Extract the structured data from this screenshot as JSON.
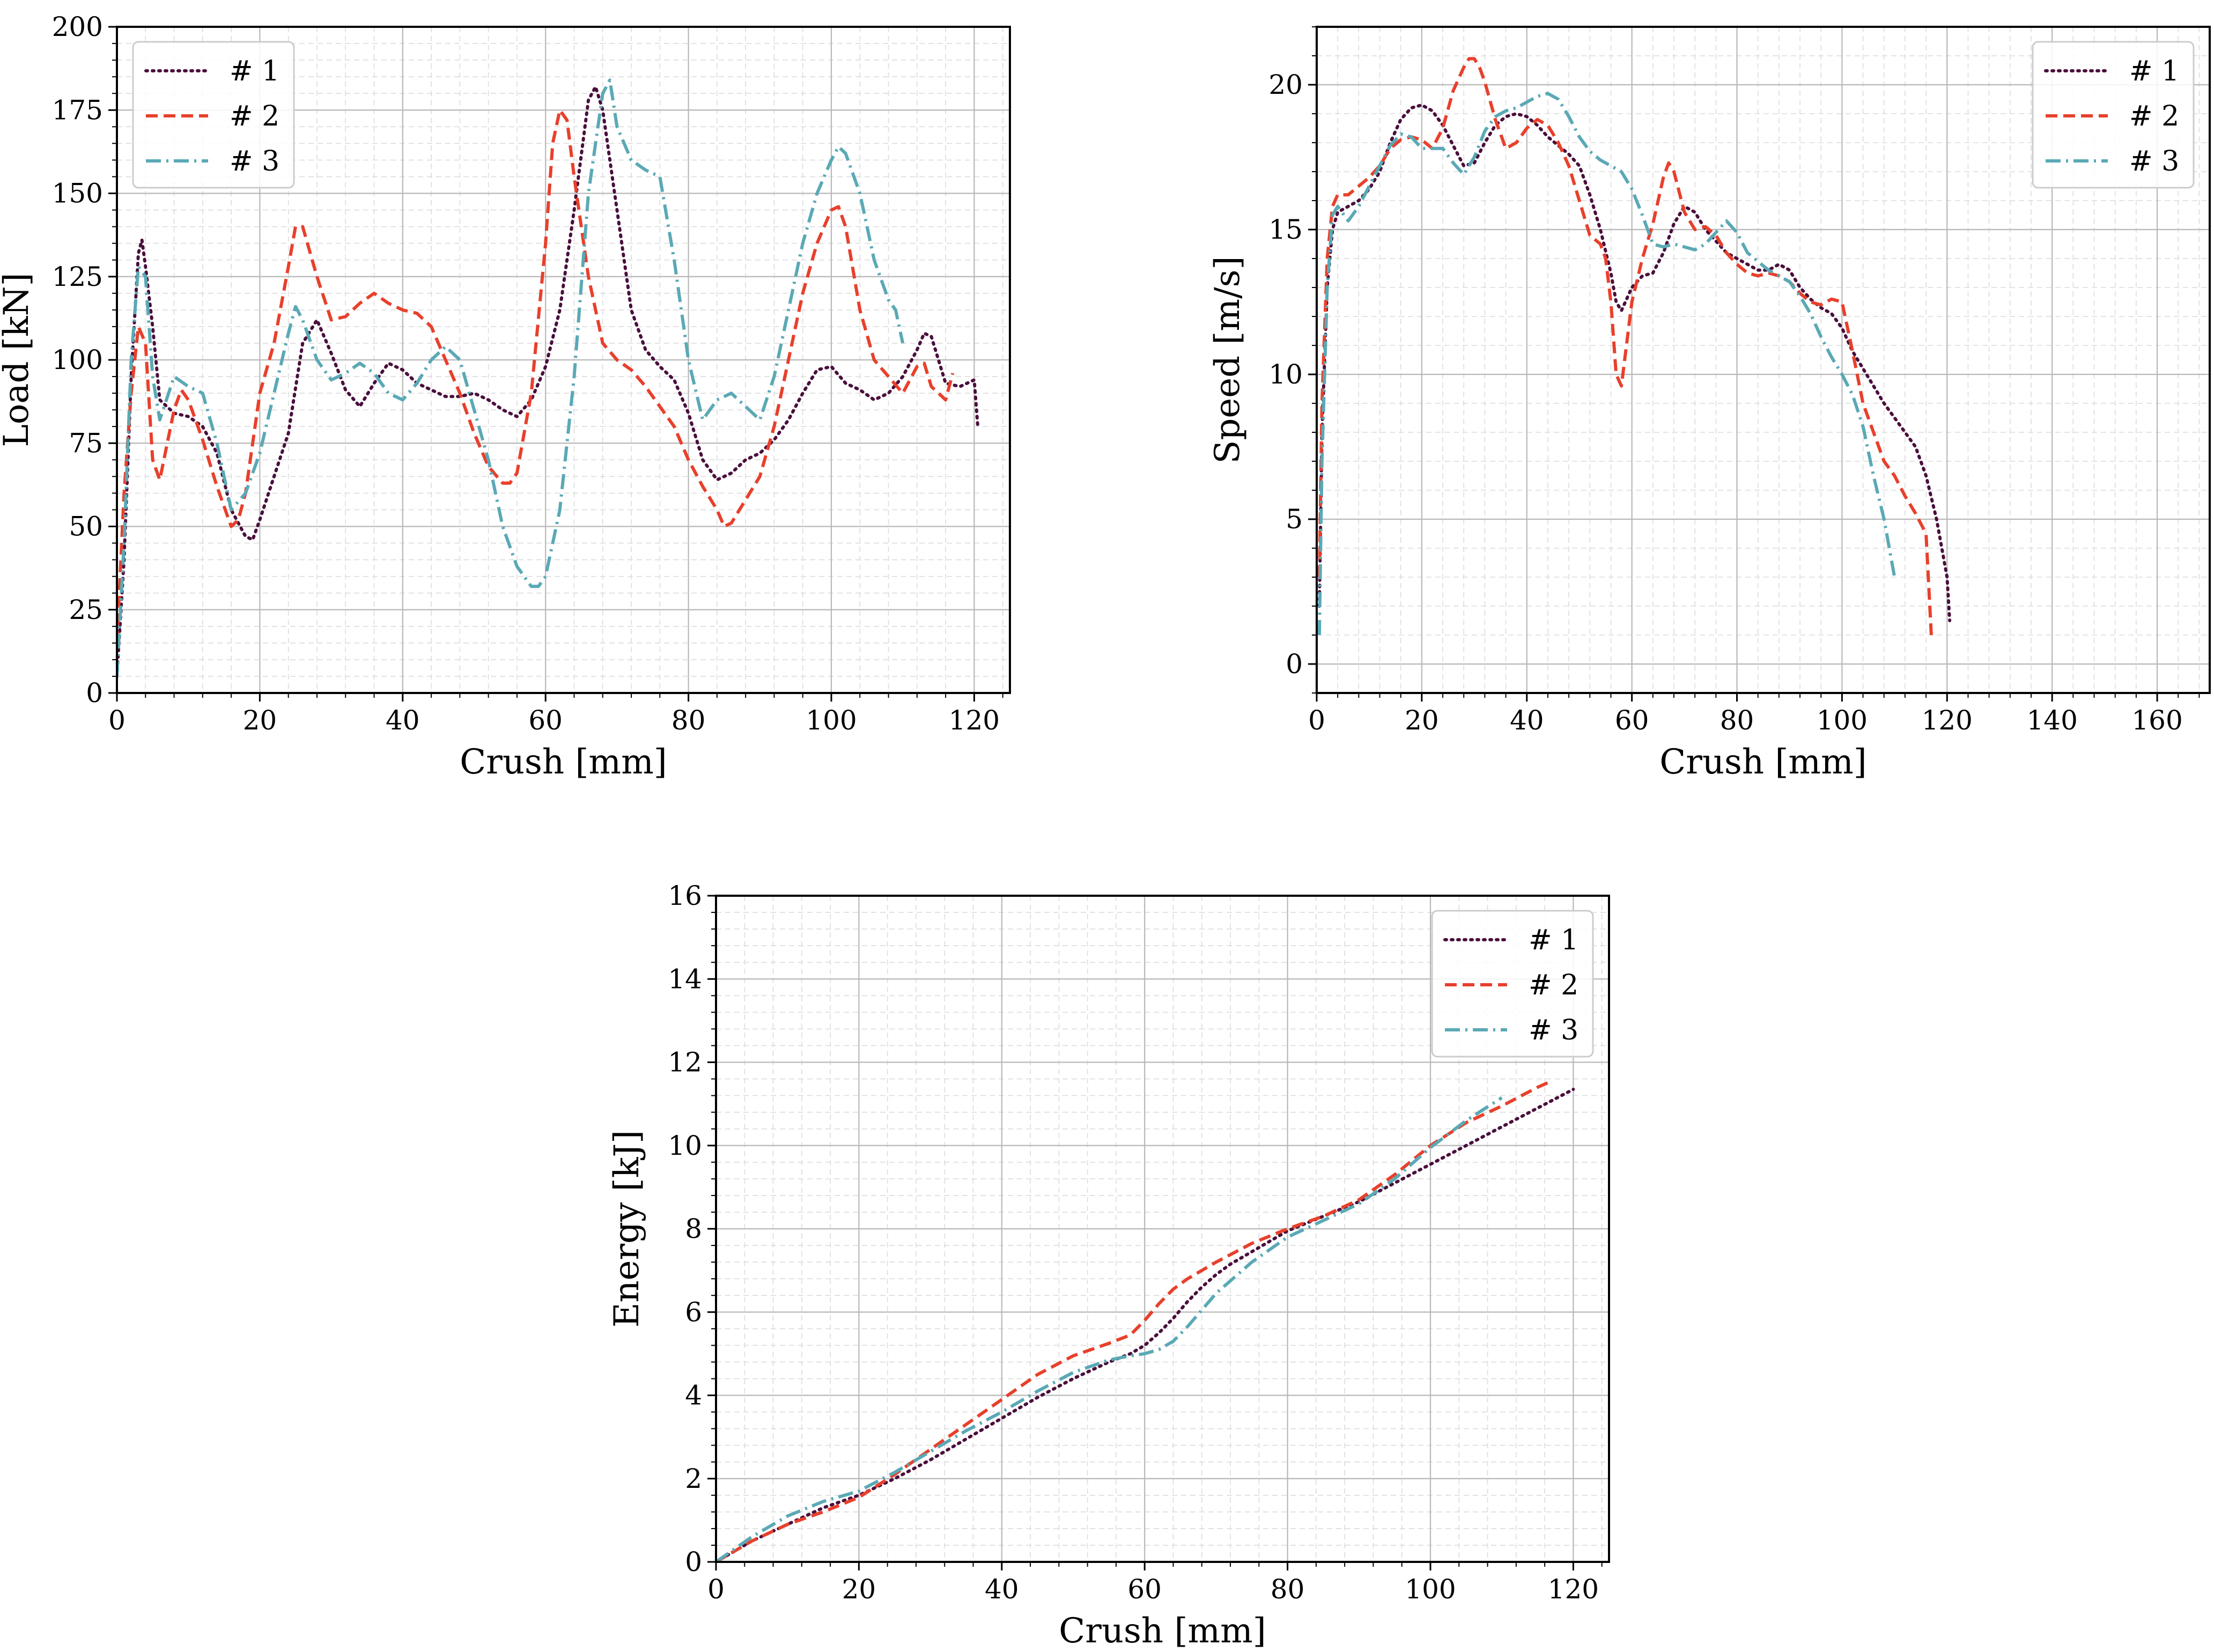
{
  "colors": {
    "series_1": "#4a0f3c",
    "series_2": "#e8402c",
    "series_3": "#5aa9b5"
  },
  "chart_data": [
    {
      "id": "load",
      "type": "line",
      "title": "",
      "xlabel": "Crush [mm]",
      "ylabel": "Load [kN]",
      "xlim": [
        0,
        125
      ],
      "ylim": [
        0,
        200
      ],
      "xticks": [
        0,
        20,
        40,
        60,
        80,
        100,
        120
      ],
      "yticks": [
        0,
        25,
        50,
        75,
        100,
        125,
        150,
        175,
        200
      ],
      "grid": true,
      "legend_position": "top-left",
      "series": [
        {
          "name": "# 1",
          "style": "dotted",
          "x": [
            0,
            1,
            2,
            3,
            3.5,
            4,
            5,
            6,
            8,
            10,
            12,
            14,
            16,
            18,
            19,
            20,
            22,
            24,
            26,
            28,
            30,
            32,
            34,
            36,
            38,
            40,
            42,
            44,
            46,
            48,
            50,
            52,
            54,
            56,
            58,
            60,
            62,
            64,
            66,
            67,
            68,
            70,
            72,
            74,
            76,
            78,
            80,
            82,
            84,
            86,
            88,
            90,
            92,
            94,
            96,
            98,
            100,
            102,
            104,
            106,
            108,
            110,
            112,
            113,
            114,
            115,
            116,
            118,
            120,
            120.5
          ],
          "y": [
            5,
            40,
            95,
            132,
            136,
            128,
            110,
            88,
            84,
            83,
            80,
            72,
            55,
            47,
            46,
            52,
            65,
            78,
            105,
            112,
            102,
            91,
            86,
            93,
            99,
            97,
            93,
            91,
            89,
            89,
            90,
            88,
            85,
            83,
            88,
            98,
            115,
            145,
            178,
            182,
            175,
            145,
            115,
            103,
            98,
            94,
            84,
            70,
            64,
            66,
            70,
            72,
            76,
            82,
            90,
            97,
            98,
            93,
            91,
            88,
            90,
            95,
            103,
            108,
            107,
            100,
            93,
            92,
            94,
            80
          ]
        },
        {
          "name": "# 2",
          "style": "dashed",
          "x": [
            0,
            1,
            2,
            3,
            4,
            5,
            6,
            8,
            9,
            10,
            12,
            14,
            16,
            17,
            18,
            20,
            22,
            24,
            25,
            26,
            28,
            30,
            32,
            34,
            36,
            38,
            40,
            42,
            44,
            46,
            48,
            50,
            52,
            54,
            55,
            56,
            58,
            60,
            61,
            62,
            63,
            64,
            66,
            68,
            70,
            72,
            74,
            76,
            78,
            80,
            82,
            84,
            85,
            86,
            88,
            90,
            92,
            94,
            96,
            98,
            100,
            101,
            102,
            104,
            106,
            108,
            110,
            112,
            113,
            114,
            116,
            117
          ],
          "y": [
            15,
            60,
            90,
            110,
            105,
            70,
            64,
            85,
            91,
            88,
            76,
            62,
            50,
            52,
            60,
            90,
            105,
            128,
            140,
            140,
            125,
            112,
            113,
            117,
            120,
            117,
            115,
            114,
            110,
            100,
            90,
            78,
            68,
            63,
            63,
            66,
            90,
            135,
            165,
            175,
            172,
            155,
            125,
            105,
            100,
            97,
            92,
            86,
            80,
            70,
            62,
            55,
            50,
            51,
            58,
            65,
            80,
            100,
            120,
            135,
            145,
            146,
            140,
            115,
            100,
            95,
            90,
            98,
            99,
            92,
            88,
            96
          ]
        },
        {
          "name": "# 3",
          "style": "dash-dot",
          "x": [
            0,
            1,
            2,
            3,
            4,
            5,
            6,
            8,
            10,
            12,
            14,
            16,
            18,
            20,
            22,
            24,
            25,
            26,
            28,
            30,
            32,
            34,
            36,
            38,
            40,
            42,
            44,
            46,
            48,
            50,
            52,
            54,
            56,
            58,
            59,
            60,
            62,
            64,
            66,
            68,
            69,
            70,
            72,
            74,
            76,
            78,
            80,
            82,
            84,
            86,
            88,
            90,
            92,
            94,
            96,
            98,
            100,
            101,
            102,
            104,
            106,
            108,
            109,
            110
          ],
          "y": [
            5,
            45,
            100,
            128,
            125,
            95,
            82,
            95,
            92,
            90,
            75,
            55,
            60,
            72,
            90,
            108,
            116,
            112,
            100,
            94,
            96,
            99,
            96,
            90,
            88,
            93,
            100,
            104,
            100,
            85,
            70,
            50,
            38,
            32,
            32,
            35,
            55,
            95,
            150,
            180,
            184,
            170,
            160,
            157,
            155,
            130,
            100,
            82,
            88,
            90,
            86,
            82,
            95,
            115,
            135,
            150,
            160,
            164,
            162,
            150,
            130,
            118,
            115,
            105
          ]
        }
      ]
    },
    {
      "id": "speed",
      "type": "line",
      "title": "",
      "xlabel": "Crush [mm]",
      "ylabel": "Speed [m/s]",
      "xlim": [
        0,
        170
      ],
      "ylim": [
        -1,
        22
      ],
      "xticks": [
        0,
        20,
        40,
        60,
        80,
        100,
        120,
        140,
        160
      ],
      "yticks": [
        0,
        5,
        10,
        15,
        20
      ],
      "grid": true,
      "legend_position": "top-right",
      "series": [
        {
          "name": "# 1",
          "style": "dotted",
          "x": [
            0.5,
            1,
            2,
            3,
            4,
            6,
            8,
            10,
            12,
            14,
            16,
            18,
            20,
            22,
            24,
            26,
            28,
            30,
            32,
            34,
            36,
            38,
            40,
            42,
            44,
            46,
            48,
            50,
            52,
            54,
            56,
            57,
            58,
            60,
            62,
            64,
            66,
            68,
            70,
            72,
            74,
            76,
            78,
            80,
            82,
            84,
            86,
            88,
            90,
            92,
            94,
            96,
            98,
            100,
            102,
            104,
            106,
            108,
            110,
            112,
            114,
            116,
            118,
            120,
            120.5
          ],
          "y": [
            2,
            8,
            13,
            15,
            15.6,
            15.8,
            16,
            16.4,
            17,
            18,
            18.8,
            19.2,
            19.3,
            19.1,
            18.6,
            17.9,
            17.2,
            17.3,
            18,
            18.6,
            18.9,
            19,
            18.9,
            18.6,
            18.2,
            17.9,
            17.6,
            17.2,
            16.2,
            15,
            13.5,
            12.5,
            12.2,
            13,
            13.4,
            13.5,
            14.2,
            15.2,
            15.8,
            15.6,
            15,
            14.6,
            14.2,
            14,
            13.8,
            13.6,
            13.6,
            13.8,
            13.6,
            13,
            12.6,
            12.3,
            12.1,
            11.6,
            10.8,
            10.2,
            9.6,
            9,
            8.5,
            8,
            7.5,
            6.5,
            5,
            3,
            1.5
          ]
        },
        {
          "name": "# 2",
          "style": "dashed",
          "x": [
            0.5,
            1,
            2,
            3,
            4,
            6,
            8,
            10,
            12,
            14,
            16,
            18,
            20,
            22,
            24,
            26,
            28,
            29,
            30,
            31,
            32,
            34,
            36,
            38,
            40,
            42,
            44,
            46,
            48,
            50,
            52,
            54,
            55,
            56,
            57,
            58,
            60,
            62,
            64,
            66,
            67,
            68,
            70,
            72,
            74,
            76,
            78,
            80,
            82,
            84,
            86,
            88,
            90,
            92,
            94,
            96,
            98,
            100,
            102,
            104,
            106,
            108,
            110,
            112,
            114,
            116,
            117
          ],
          "y": [
            3,
            9,
            14,
            15.8,
            16.2,
            16.2,
            16.5,
            16.8,
            17.2,
            17.8,
            18.1,
            18.2,
            18.1,
            17.8,
            18.5,
            19.8,
            20.6,
            20.9,
            20.9,
            20.6,
            20.1,
            18.8,
            17.8,
            18,
            18.5,
            18.8,
            18.6,
            18,
            17.2,
            16,
            14.8,
            14.5,
            14,
            12.5,
            10,
            9.6,
            12.5,
            14,
            15.2,
            16.8,
            17.3,
            17,
            15.6,
            15,
            15.1,
            14.8,
            14.2,
            13.8,
            13.5,
            13.4,
            13.5,
            13.4,
            13.2,
            12.8,
            12.5,
            12.4,
            12.6,
            12.5,
            10.8,
            9,
            8,
            7,
            6.5,
            5.8,
            5.2,
            4.5,
            1
          ]
        },
        {
          "name": "# 3",
          "style": "dash-dot",
          "x": [
            0.5,
            1,
            2,
            3,
            4,
            6,
            8,
            10,
            12,
            14,
            16,
            18,
            20,
            22,
            24,
            26,
            28,
            30,
            32,
            34,
            36,
            38,
            40,
            42,
            44,
            46,
            48,
            50,
            52,
            54,
            56,
            58,
            60,
            62,
            64,
            66,
            68,
            70,
            72,
            74,
            76,
            78,
            80,
            82,
            84,
            86,
            88,
            90,
            92,
            94,
            96,
            98,
            100,
            102,
            104,
            106,
            108,
            110
          ],
          "y": [
            1,
            7,
            13,
            15.5,
            15.8,
            15.3,
            15.8,
            16.5,
            17.2,
            17.9,
            18.3,
            18.2,
            17.8,
            17.8,
            17.8,
            17.3,
            16.9,
            17.5,
            18.4,
            18.9,
            19.1,
            19.2,
            19.4,
            19.6,
            19.7,
            19.5,
            18.9,
            18.2,
            17.7,
            17.4,
            17.2,
            17,
            16.4,
            15.5,
            14.5,
            14.4,
            14.5,
            14.4,
            14.3,
            14.5,
            14.9,
            15.3,
            14.9,
            14.2,
            13.9,
            13.6,
            13.4,
            13.2,
            12.7,
            12.1,
            11.3,
            10.6,
            10,
            9.3,
            8.2,
            6.5,
            5,
            3
          ]
        }
      ]
    },
    {
      "id": "energy",
      "type": "line",
      "title": "",
      "xlabel": "Crush [mm]",
      "ylabel": "Energy [kJ]",
      "xlim": [
        0,
        125
      ],
      "ylim": [
        0,
        16
      ],
      "xticks": [
        0,
        20,
        40,
        60,
        80,
        100,
        120
      ],
      "yticks": [
        0,
        2,
        4,
        6,
        8,
        10,
        12,
        14,
        16
      ],
      "grid": true,
      "legend_position": "top-right",
      "series": [
        {
          "name": "# 1",
          "style": "dotted",
          "x": [
            0,
            5,
            10,
            15,
            20,
            25,
            30,
            35,
            40,
            45,
            50,
            55,
            58,
            60,
            62,
            64,
            66,
            68,
            70,
            72,
            75,
            80,
            85,
            90,
            95,
            100,
            105,
            110,
            115,
            120
          ],
          "y": [
            0,
            0.5,
            0.9,
            1.3,
            1.6,
            2.0,
            2.45,
            2.95,
            3.45,
            3.95,
            4.4,
            4.8,
            5.0,
            5.2,
            5.5,
            5.85,
            6.25,
            6.6,
            6.9,
            7.15,
            7.45,
            7.95,
            8.3,
            8.65,
            9.1,
            9.55,
            10.0,
            10.45,
            10.9,
            11.35
          ]
        },
        {
          "name": "# 2",
          "style": "dashed",
          "x": [
            0,
            5,
            10,
            15,
            20,
            25,
            30,
            35,
            40,
            45,
            50,
            55,
            58,
            60,
            62,
            64,
            66,
            68,
            70,
            75,
            80,
            85,
            90,
            95,
            100,
            105,
            110,
            115,
            117
          ],
          "y": [
            0,
            0.5,
            0.9,
            1.2,
            1.55,
            2.1,
            2.7,
            3.3,
            3.9,
            4.5,
            4.95,
            5.25,
            5.45,
            5.8,
            6.2,
            6.55,
            6.8,
            7.0,
            7.2,
            7.65,
            8.0,
            8.3,
            8.7,
            9.3,
            10.0,
            10.55,
            10.95,
            11.4,
            11.55
          ]
        },
        {
          "name": "# 3",
          "style": "dash-dot",
          "x": [
            0,
            5,
            10,
            15,
            20,
            25,
            30,
            35,
            40,
            45,
            50,
            55,
            58,
            60,
            62,
            64,
            66,
            68,
            70,
            75,
            80,
            85,
            90,
            95,
            100,
            105,
            110
          ],
          "y": [
            0,
            0.6,
            1.1,
            1.45,
            1.7,
            2.15,
            2.65,
            3.15,
            3.6,
            4.1,
            4.55,
            4.85,
            4.95,
            5.0,
            5.1,
            5.3,
            5.65,
            6.05,
            6.45,
            7.2,
            7.8,
            8.2,
            8.6,
            9.2,
            9.95,
            10.6,
            11.15
          ]
        }
      ]
    }
  ]
}
